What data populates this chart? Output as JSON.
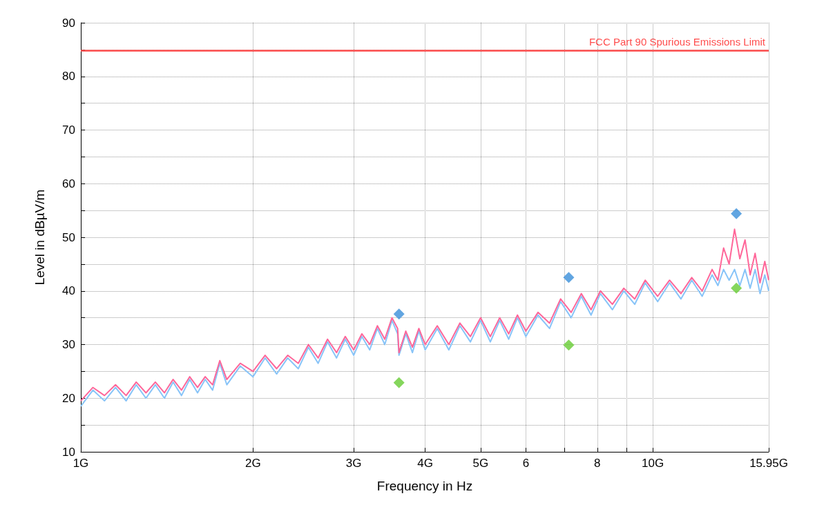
{
  "chart_data": {
    "type": "line",
    "xlabel": "Frequency in Hz",
    "ylabel": "Level in dBµV/m",
    "log": "x",
    "grid": true,
    "xlim": [
      1,
      15.95
    ],
    "ylim": [
      10,
      90
    ],
    "xticks": [
      {
        "value": 1,
        "label": "1G"
      },
      {
        "value": 2,
        "label": "2G"
      },
      {
        "value": 3,
        "label": "3G"
      },
      {
        "value": 4,
        "label": "4G"
      },
      {
        "value": 5,
        "label": "5G"
      },
      {
        "value": 6,
        "label": "6"
      },
      {
        "value": 7,
        "label": null
      },
      {
        "value": 8,
        "label": "8"
      },
      {
        "value": 9,
        "label": null
      },
      {
        "value": 10,
        "label": "10G"
      },
      {
        "value": 15.95,
        "label": "15.95G"
      }
    ],
    "yticks": [
      10,
      {
        "value": 15,
        "label": null
      },
      20,
      {
        "value": 25,
        "label": null
      },
      30,
      {
        "value": 35,
        "label": null
      },
      40,
      {
        "value": 45,
        "label": null
      },
      50,
      {
        "value": 55,
        "label": null
      },
      60,
      {
        "value": 65,
        "label": null
      },
      70,
      {
        "value": 75,
        "label": null
      },
      80,
      {
        "value": 85,
        "label": null
      },
      90
    ],
    "x": [
      1.0,
      1.05,
      1.1,
      1.15,
      1.2,
      1.25,
      1.3,
      1.35,
      1.4,
      1.45,
      1.5,
      1.55,
      1.6,
      1.65,
      1.7,
      1.75,
      1.8,
      1.9,
      2.0,
      2.1,
      2.2,
      2.3,
      2.4,
      2.5,
      2.6,
      2.7,
      2.8,
      2.9,
      3.0,
      3.1,
      3.2,
      3.3,
      3.4,
      3.5,
      3.58,
      3.6,
      3.7,
      3.8,
      3.9,
      4.0,
      4.2,
      4.4,
      4.6,
      4.8,
      5.0,
      5.2,
      5.4,
      5.6,
      5.8,
      6.0,
      6.3,
      6.6,
      6.9,
      7.2,
      7.5,
      7.8,
      8.1,
      8.5,
      8.9,
      9.3,
      9.7,
      10.2,
      10.7,
      11.2,
      11.7,
      12.2,
      12.7,
      13.0,
      13.3,
      13.6,
      13.9,
      14.2,
      14.5,
      14.8,
      15.1,
      15.4,
      15.7,
      15.95
    ],
    "ref_lines": [
      {
        "axis": "y",
        "value": 84.8,
        "label": "FCC Part 90 Spurious Emissions Limit",
        "color": "#ff4d4d",
        "line_style": "solid"
      }
    ],
    "series": [
      {
        "marker": "none",
        "color": "#88c4f8",
        "values": [
          18.5,
          21.5,
          19.5,
          22,
          19.5,
          22.5,
          20,
          22.5,
          20,
          23,
          20.5,
          23.5,
          21,
          23.5,
          21.5,
          26.5,
          22.5,
          26,
          24,
          27.5,
          24.5,
          27.5,
          25.5,
          29.5,
          26.5,
          30.5,
          27.5,
          31,
          28,
          31.5,
          29,
          33,
          30,
          34.5,
          32,
          28,
          32,
          28.5,
          32.5,
          29,
          33,
          29,
          33.5,
          30.5,
          34.5,
          30.5,
          34.5,
          31,
          35,
          31.5,
          35.5,
          33,
          38,
          35,
          39,
          35.5,
          39.5,
          36.5,
          40,
          37.5,
          41.5,
          38,
          41.5,
          38.5,
          42,
          39,
          43,
          41,
          44,
          42,
          44,
          41,
          44,
          40.5,
          44,
          39.5,
          43,
          40
        ]
      },
      {
        "marker": "none",
        "color": "#ff6699",
        "values": [
          19.5,
          22,
          20.5,
          22.5,
          20.5,
          23,
          21,
          23,
          21,
          23.5,
          21.5,
          24,
          22,
          24,
          22.5,
          27,
          23.5,
          26.5,
          25,
          28,
          25.5,
          28,
          26.5,
          30,
          27.5,
          31,
          28.5,
          31.5,
          29,
          32,
          30,
          33.5,
          31,
          35,
          33,
          28.5,
          32.5,
          29.5,
          33,
          30,
          33.5,
          30,
          34,
          31.5,
          35,
          31.5,
          35,
          32,
          35.5,
          32.5,
          36,
          34,
          38.5,
          36,
          39.5,
          36.5,
          40,
          37.5,
          40.5,
          38.5,
          42,
          39,
          42,
          39.5,
          42.5,
          40,
          44,
          42,
          48,
          45,
          51.5,
          46,
          49.5,
          43,
          47,
          41.5,
          45.5,
          42
        ]
      },
      {
        "type": "scatter",
        "marker": "diamond",
        "color": "#3a8fd9",
        "x": [
          3.6,
          7.13,
          14.0
        ],
        "values": [
          35.7,
          42.5,
          54.4
        ]
      },
      {
        "type": "scatter",
        "marker": "diamond",
        "color": "#66cc33",
        "x": [
          3.6,
          7.13,
          14.0
        ],
        "values": [
          22.9,
          29.9,
          40.5
        ]
      }
    ]
  }
}
